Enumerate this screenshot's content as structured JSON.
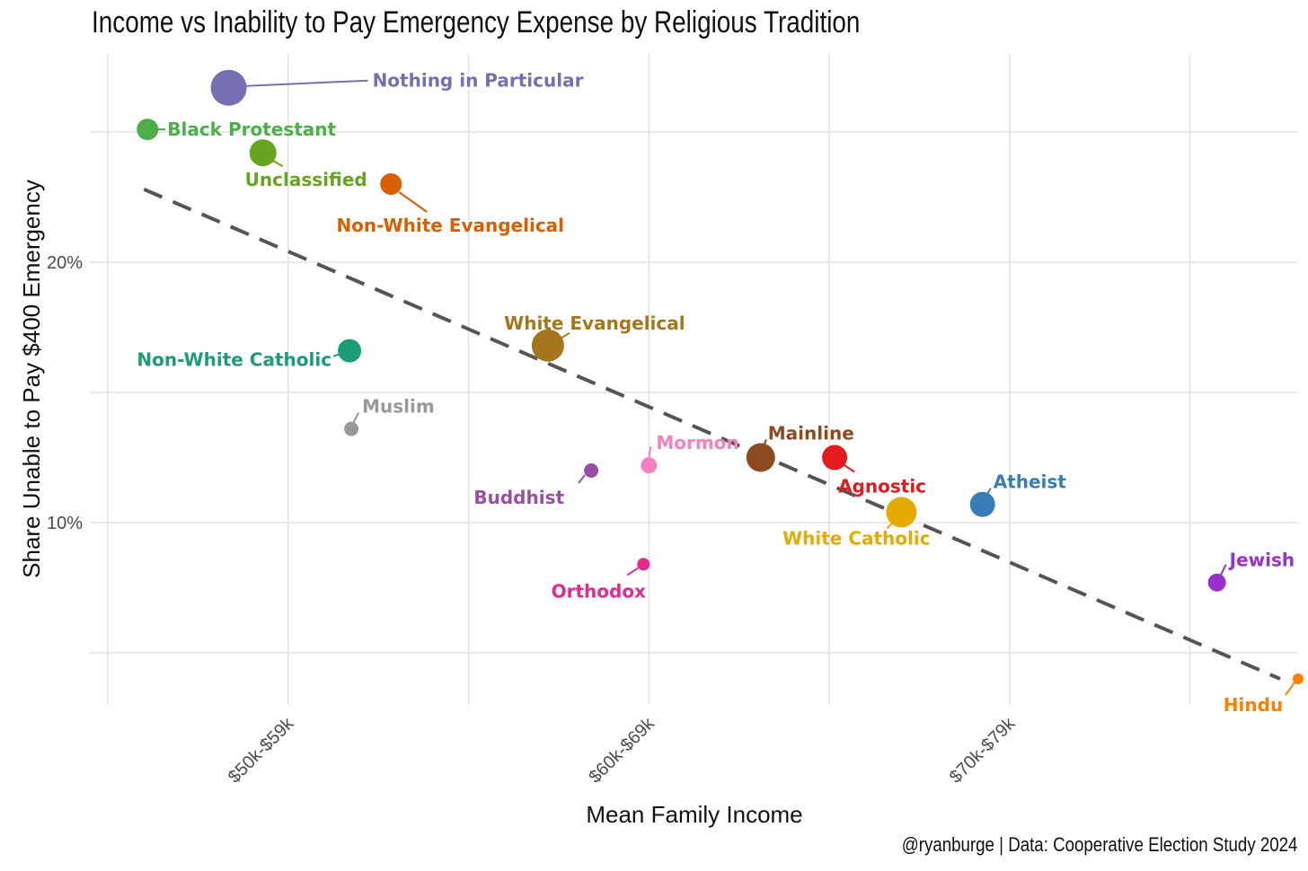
{
  "chart_data": {
    "type": "scatter",
    "title": "Income vs Inability to Pay Emergency Expense by Religious Tradition",
    "xlabel": "Mean Family Income",
    "ylabel": "Share Unable to Pay $400 Emergency",
    "caption": "@ryanburge | Data: Cooperative Election Study 2024",
    "x_tick_labels": [
      "$50k-$59k",
      "$60k-$69k",
      "$70k-$79k"
    ],
    "x_tick_values": [
      5,
      7,
      9
    ],
    "y_tick_labels": [
      "10%",
      "20%"
    ],
    "y_tick_values": [
      10,
      20
    ],
    "xlim": [
      3.9,
      10.6
    ],
    "ylim": [
      3.0,
      28.0
    ],
    "grid": true,
    "legend": "none",
    "trend_line": {
      "style": "dashed",
      "color": "#555555",
      "x": [
        4.2,
        10.5
      ],
      "y": [
        22.8,
        4.0
      ]
    },
    "points": [
      {
        "label": "Nothing in Particular",
        "x": 4.67,
        "y": 26.7,
        "size": 20,
        "color": "#7570b3"
      },
      {
        "label": "Black Protestant",
        "x": 4.22,
        "y": 25.1,
        "size": 12,
        "color": "#4daf4a"
      },
      {
        "label": "Unclassified",
        "x": 4.86,
        "y": 24.2,
        "size": 15,
        "color": "#66a61e"
      },
      {
        "label": "Non-White Evangelical",
        "x": 5.57,
        "y": 23.0,
        "size": 12,
        "color": "#d95f02"
      },
      {
        "label": "White Evangelical",
        "x": 6.44,
        "y": 16.8,
        "size": 18,
        "color": "#a6761d"
      },
      {
        "label": "Non-White Catholic",
        "x": 5.34,
        "y": 16.6,
        "size": 13,
        "color": "#1b9e77"
      },
      {
        "label": "Muslim",
        "x": 5.35,
        "y": 13.6,
        "size": 8,
        "color": "#999999"
      },
      {
        "label": "Mormon",
        "x": 7.0,
        "y": 12.2,
        "size": 9,
        "color": "#f781bf"
      },
      {
        "label": "Buddhist",
        "x": 6.68,
        "y": 12.0,
        "size": 8,
        "color": "#984ea3"
      },
      {
        "label": "Mainline",
        "x": 7.62,
        "y": 12.5,
        "size": 16,
        "color": "#8c4a20"
      },
      {
        "label": "Agnostic",
        "x": 8.03,
        "y": 12.5,
        "size": 14,
        "color": "#e41a1c"
      },
      {
        "label": "White Catholic",
        "x": 8.4,
        "y": 10.4,
        "size": 17,
        "color": "#e6ab02"
      },
      {
        "label": "Atheist",
        "x": 8.85,
        "y": 10.7,
        "size": 14,
        "color": "#377eb8"
      },
      {
        "label": "Orthodox",
        "x": 6.97,
        "y": 8.4,
        "size": 7,
        "color": "#e7298a"
      },
      {
        "label": "Jewish",
        "x": 10.15,
        "y": 7.7,
        "size": 10,
        "color": "#9932cc"
      },
      {
        "label": "Hindu",
        "x": 10.6,
        "y": 4.0,
        "size": 6,
        "color": "#ff7f00"
      }
    ]
  }
}
